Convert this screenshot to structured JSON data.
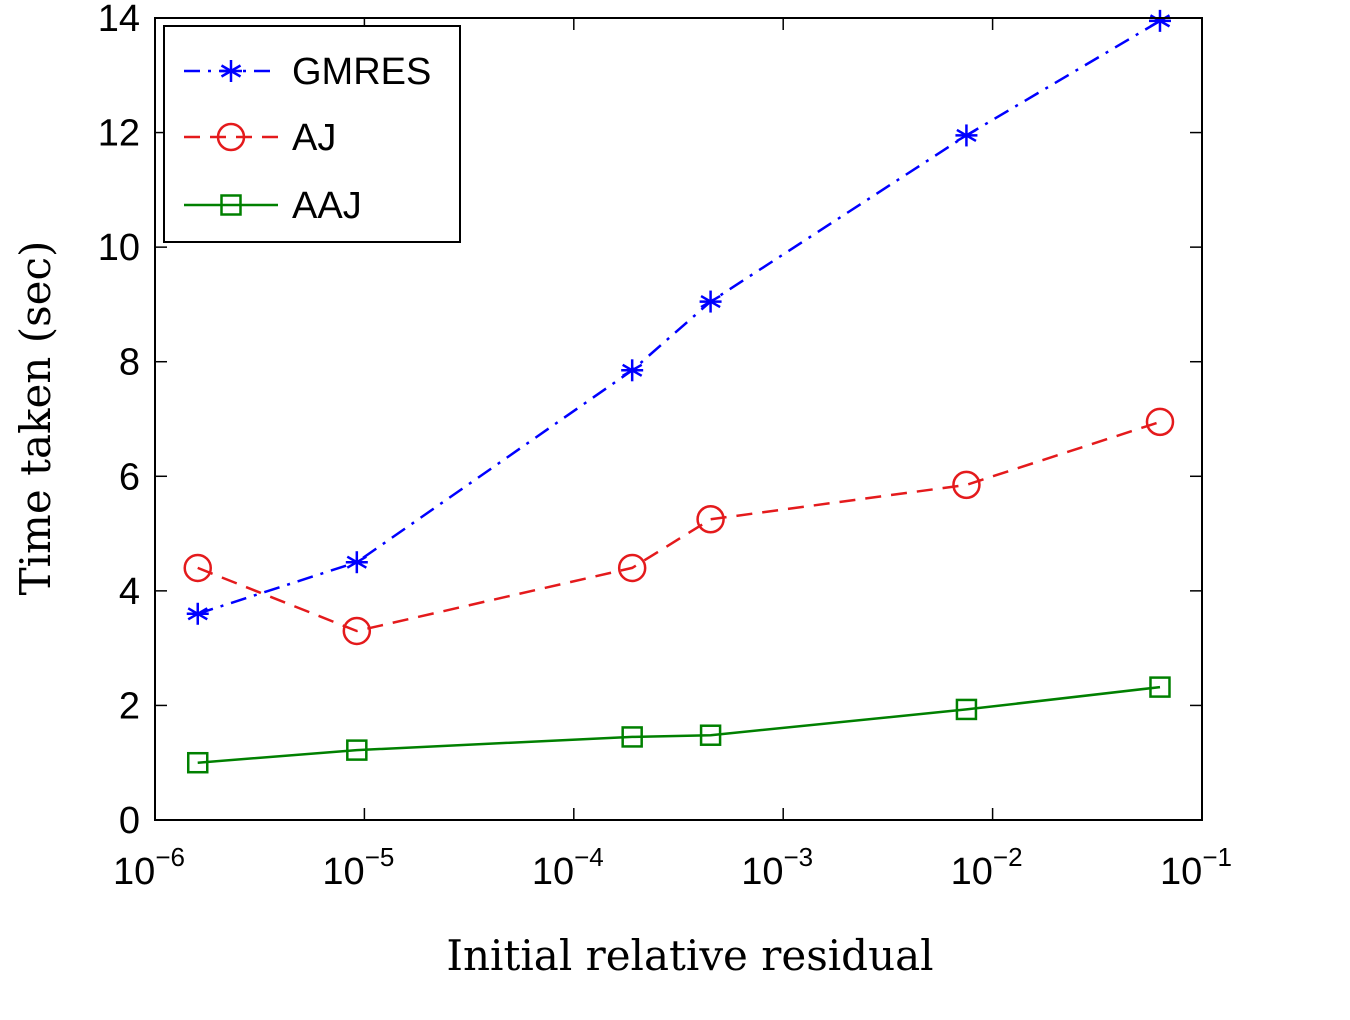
{
  "chart_data": {
    "type": "line",
    "xscale": "log",
    "xlabel": "Initial relative residual",
    "ylabel": "Time taken (sec)",
    "xlim": [
      1e-06,
      0.1
    ],
    "ylim": [
      0,
      14
    ],
    "x_ticks": [
      {
        "base": "10",
        "exp": "−6",
        "value": 1e-06
      },
      {
        "base": "10",
        "exp": "−5",
        "value": 1e-05
      },
      {
        "base": "10",
        "exp": "−4",
        "value": 0.0001
      },
      {
        "base": "10",
        "exp": "−3",
        "value": 0.001
      },
      {
        "base": "10",
        "exp": "−2",
        "value": 0.01
      },
      {
        "base": "10",
        "exp": "−1",
        "value": 0.1
      }
    ],
    "y_ticks": [
      "0",
      "2",
      "4",
      "6",
      "8",
      "10",
      "12",
      "14"
    ],
    "grid": false,
    "legend_position": "top-left",
    "x": [
      1.6e-06,
      9.2e-06,
      0.00019,
      0.00045,
      0.0075,
      0.063
    ],
    "series": [
      {
        "name": "GMRES",
        "values": [
          3.6,
          4.5,
          7.85,
          9.05,
          11.95,
          13.95
        ],
        "color": "#0000ff",
        "marker": "asterisk",
        "linestyle": "dash-dot"
      },
      {
        "name": "AJ",
        "values": [
          4.4,
          3.3,
          4.4,
          5.25,
          5.85,
          6.95
        ],
        "color": "#e41a1c",
        "marker": "circle",
        "linestyle": "dashed"
      },
      {
        "name": "AAJ",
        "values": [
          1.0,
          1.22,
          1.45,
          1.48,
          1.93,
          2.32
        ],
        "color": "#008000",
        "marker": "square",
        "linestyle": "solid"
      }
    ]
  }
}
